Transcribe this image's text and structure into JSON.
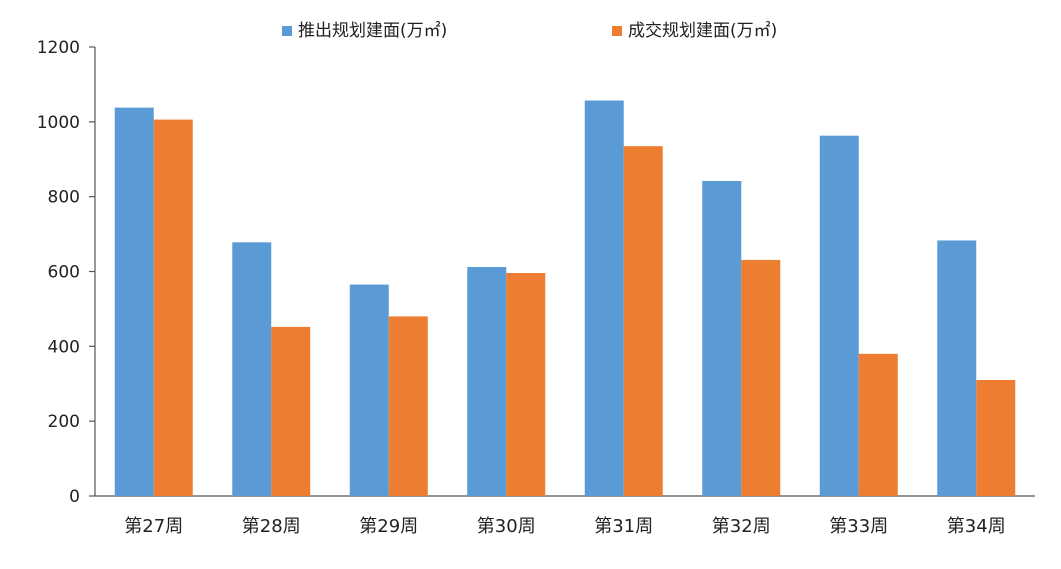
{
  "chart_data": {
    "type": "bar",
    "title": "",
    "xlabel": "",
    "ylabel": "",
    "categories": [
      "第27周",
      "第28周",
      "第29周",
      "第30周",
      "第31周",
      "第32周",
      "第33周",
      "第34周"
    ],
    "series": [
      {
        "name": "推出规划建面(万㎡)",
        "color": "#5B9BD5",
        "values": [
          1038,
          678,
          565,
          612,
          1057,
          842,
          963,
          683
        ]
      },
      {
        "name": "成交规划建面(万㎡)",
        "color": "#ED7D31",
        "values": [
          1006,
          452,
          480,
          596,
          935,
          631,
          380,
          310
        ]
      }
    ],
    "ylim": [
      0,
      1200
    ],
    "yticks": [
      0,
      200,
      400,
      600,
      800,
      1000,
      1200
    ],
    "grid": false,
    "legend_position": "top-center"
  }
}
